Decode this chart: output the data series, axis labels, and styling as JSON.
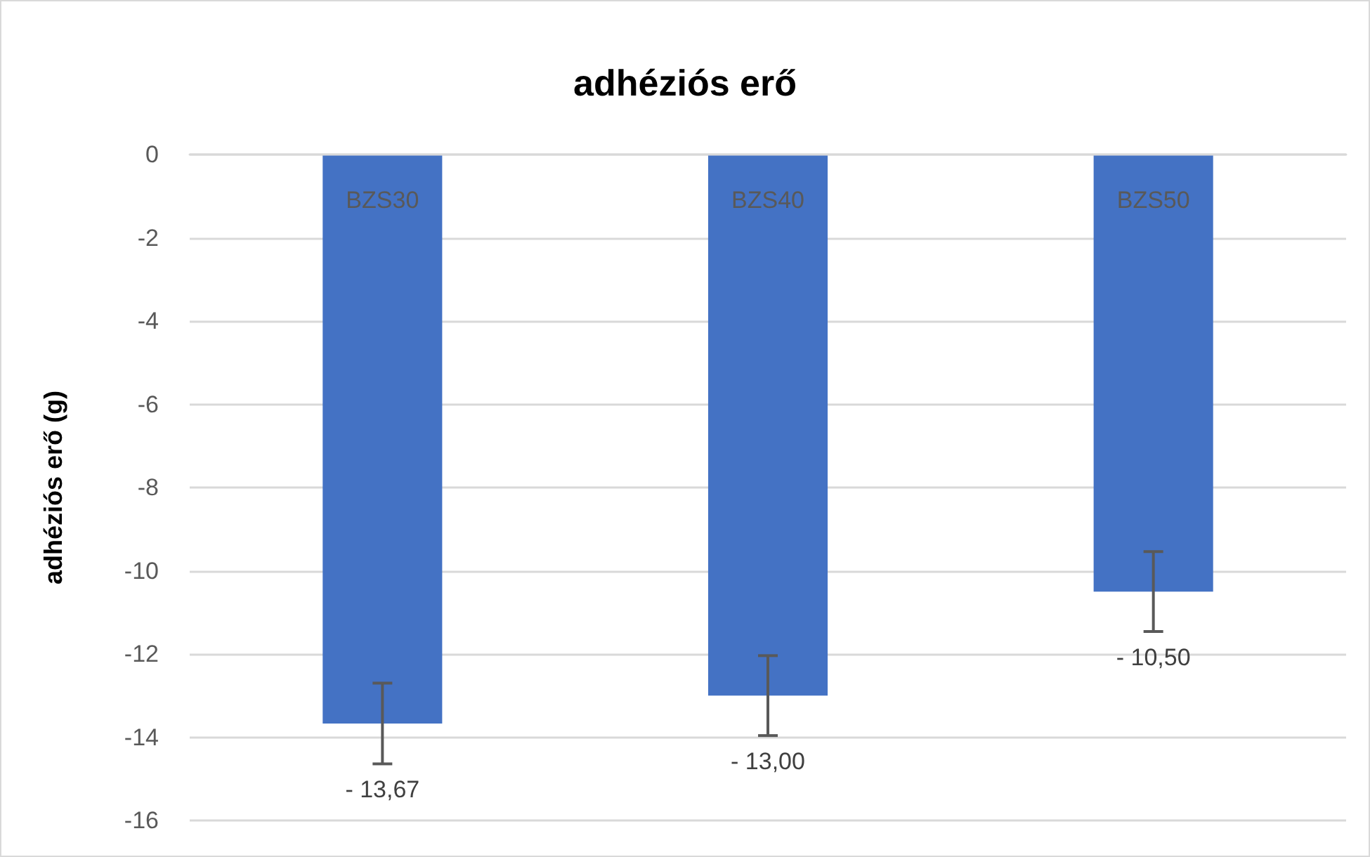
{
  "chart_data": {
    "type": "bar",
    "title": "adhéziós erő",
    "ylabel": "adhéziós erő (g)",
    "categories": [
      "BZS30",
      "BZS40",
      "BZS50"
    ],
    "values": [
      -13.67,
      -13.0,
      -10.5
    ],
    "errors": [
      0.97,
      0.96,
      0.96
    ],
    "value_labels": [
      "- 13,67",
      "- 13,00",
      "- 10,50"
    ],
    "color": "#4472c4",
    "ylim": [
      -16,
      0
    ],
    "yticks": [
      -16,
      -14,
      -12,
      -10,
      -8,
      -6,
      -4,
      -2,
      0
    ],
    "grid": "y"
  }
}
